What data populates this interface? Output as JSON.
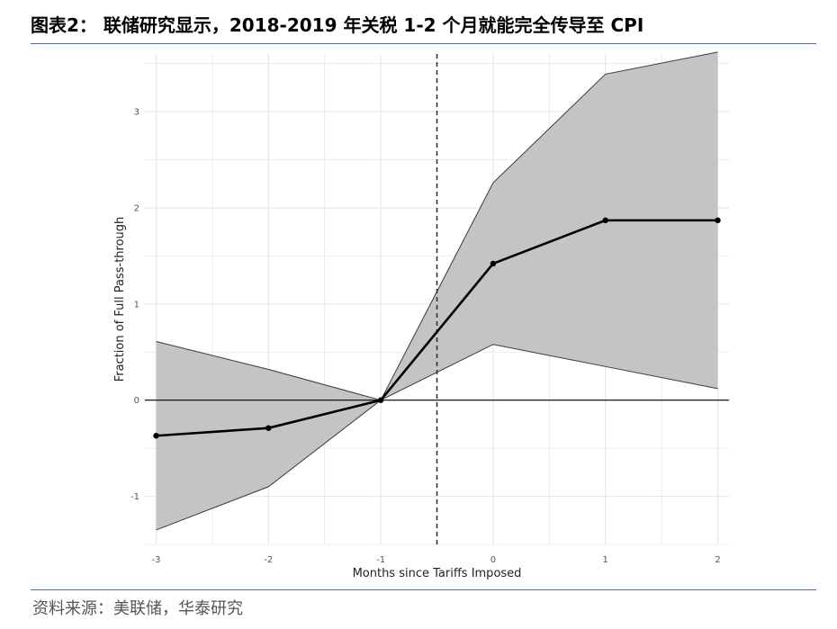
{
  "header": {
    "title": "图表2：  联储研究显示，2018-2019 年关税 1-2 个月就能完全传导至 CPI"
  },
  "footer": {
    "source": "资料来源：美联储，华泰研究"
  },
  "chart_data": {
    "type": "line",
    "title": "",
    "xlabel": "Months since Tariffs Imposed",
    "ylabel": "Fraction of Full Pass-through",
    "x": [
      -3,
      -2,
      -1,
      0,
      1,
      2
    ],
    "x_ticks": [
      -3,
      -2,
      -1,
      0,
      1,
      2
    ],
    "y_ticks": [
      -1,
      0,
      1,
      2,
      3
    ],
    "xlim": [
      -3.1,
      2.1
    ],
    "ylim": [
      -1.5,
      3.6
    ],
    "series": [
      {
        "values": [
          -0.37,
          -0.29,
          0.0,
          1.42,
          1.87,
          1.87
        ]
      }
    ],
    "band": {
      "upper": [
        0.61,
        0.32,
        0.0,
        2.26,
        3.39,
        3.62
      ],
      "lower": [
        -1.35,
        -0.9,
        0.0,
        0.58,
        0.35,
        0.12
      ]
    },
    "vline_x": -0.5,
    "hline_y": 0,
    "grid": true,
    "legend": "none",
    "colors": {
      "band_fill": "#c4c4c4",
      "band_edge": "#3a3a3a",
      "line": "#000000",
      "grid": "#e8e8e8",
      "vline": "#333333"
    }
  }
}
